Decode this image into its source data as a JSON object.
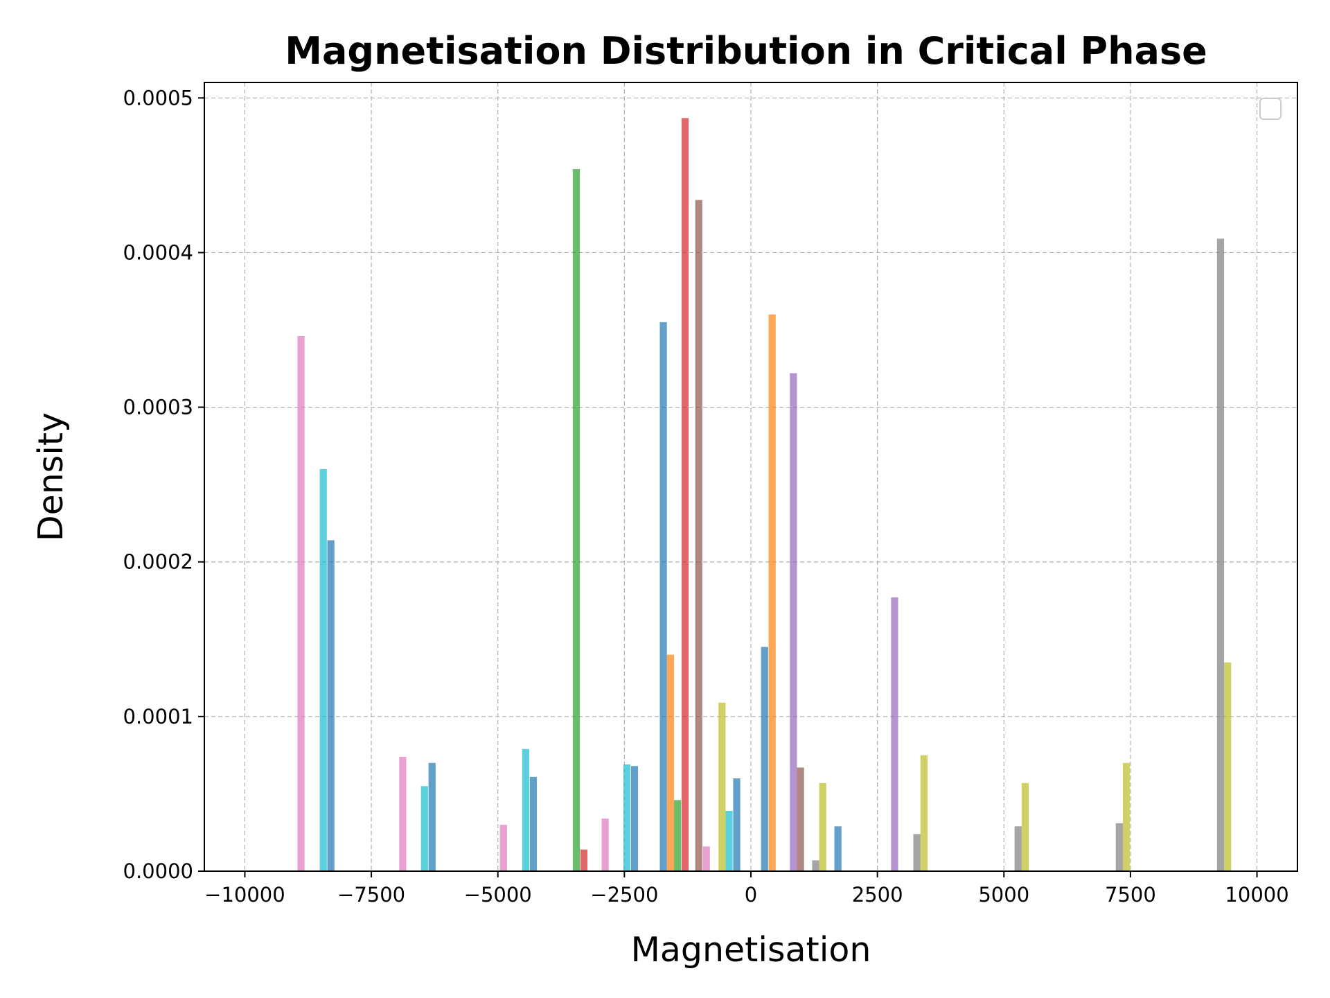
{
  "chart_data": {
    "type": "bar",
    "title": "Magnetisation Distribution in Critical Phase",
    "xlabel": "Magnetisation",
    "ylabel": "Density",
    "xlim": [
      -10800,
      10800
    ],
    "ylim": [
      0,
      0.00051
    ],
    "xticks": [
      -10000,
      -7500,
      -5000,
      -2500,
      0,
      2500,
      5000,
      7500,
      10000
    ],
    "xtick_labels": [
      "−10000",
      "−7500",
      "−5000",
      "−2500",
      "0",
      "2500",
      "5000",
      "7500",
      "10000"
    ],
    "yticks": [
      0,
      0.0001,
      0.0002,
      0.0003,
      0.0004,
      0.0005
    ],
    "ytick_labels": [
      "0.0000",
      "0.0001",
      "0.0002",
      "0.0003",
      "0.0004",
      "0.0005"
    ],
    "grid": true,
    "legend": "upper-right (empty)",
    "bar_width": 140,
    "bars": [
      {
        "x": -8890,
        "y": 0.000346,
        "color": "#e377c2"
      },
      {
        "x": -6880,
        "y": 7.4e-05,
        "color": "#e377c2"
      },
      {
        "x": -4890,
        "y": 3e-05,
        "color": "#e377c2"
      },
      {
        "x": -2880,
        "y": 3.4e-05,
        "color": "#e377c2"
      },
      {
        "x": -880,
        "y": 1.6e-05,
        "color": "#e377c2"
      },
      {
        "x": -8450,
        "y": 0.00026,
        "color": "#17becf"
      },
      {
        "x": -6450,
        "y": 5.5e-05,
        "color": "#17becf"
      },
      {
        "x": -4450,
        "y": 7.9e-05,
        "color": "#17becf"
      },
      {
        "x": -2450,
        "y": 6.9e-05,
        "color": "#17becf"
      },
      {
        "x": -430,
        "y": 3.9e-05,
        "color": "#17becf"
      },
      {
        "x": -8300,
        "y": 0.000214,
        "color": "#1f77b4"
      },
      {
        "x": -6300,
        "y": 7e-05,
        "color": "#1f77b4"
      },
      {
        "x": -4300,
        "y": 6.1e-05,
        "color": "#1f77b4"
      },
      {
        "x": -2300,
        "y": 6.8e-05,
        "color": "#1f77b4"
      },
      {
        "x": -280,
        "y": 6e-05,
        "color": "#1f77b4"
      },
      {
        "x": -1730,
        "y": 0.000355,
        "color": "#1f77b4"
      },
      {
        "x": 270,
        "y": 0.000145,
        "color": "#1f77b4"
      },
      {
        "x": 1720,
        "y": 2.9e-05,
        "color": "#1f77b4"
      },
      {
        "x": -3450,
        "y": 0.000454,
        "color": "#2ca02c"
      },
      {
        "x": -1450,
        "y": 4.6e-05,
        "color": "#2ca02c"
      },
      {
        "x": -3300,
        "y": 1.4e-05,
        "color": "#d62728"
      },
      {
        "x": -1300,
        "y": 0.000487,
        "color": "#d62728"
      },
      {
        "x": -1590,
        "y": 0.00014,
        "color": "#ff7f0e"
      },
      {
        "x": 420,
        "y": 0.00036,
        "color": "#ff7f0e"
      },
      {
        "x": -1030,
        "y": 0.000434,
        "color": "#8c564b"
      },
      {
        "x": 980,
        "y": 6.7e-05,
        "color": "#8c564b"
      },
      {
        "x": 840,
        "y": 0.000322,
        "color": "#9467bd"
      },
      {
        "x": 2840,
        "y": 0.000177,
        "color": "#9467bd"
      },
      {
        "x": -570,
        "y": 0.000109,
        "color": "#bcbd22"
      },
      {
        "x": 1420,
        "y": 5.7e-05,
        "color": "#bcbd22"
      },
      {
        "x": 3420,
        "y": 7.5e-05,
        "color": "#bcbd22"
      },
      {
        "x": 5420,
        "y": 5.7e-05,
        "color": "#bcbd22"
      },
      {
        "x": 7420,
        "y": 7e-05,
        "color": "#bcbd22"
      },
      {
        "x": 9420,
        "y": 0.000135,
        "color": "#bcbd22"
      },
      {
        "x": 1280,
        "y": 7e-06,
        "color": "#7f7f7f"
      },
      {
        "x": 3280,
        "y": 2.4e-05,
        "color": "#7f7f7f"
      },
      {
        "x": 5280,
        "y": 2.9e-05,
        "color": "#7f7f7f"
      },
      {
        "x": 7280,
        "y": 3.1e-05,
        "color": "#7f7f7f"
      },
      {
        "x": 9280,
        "y": 0.000409,
        "color": "#7f7f7f"
      }
    ]
  }
}
